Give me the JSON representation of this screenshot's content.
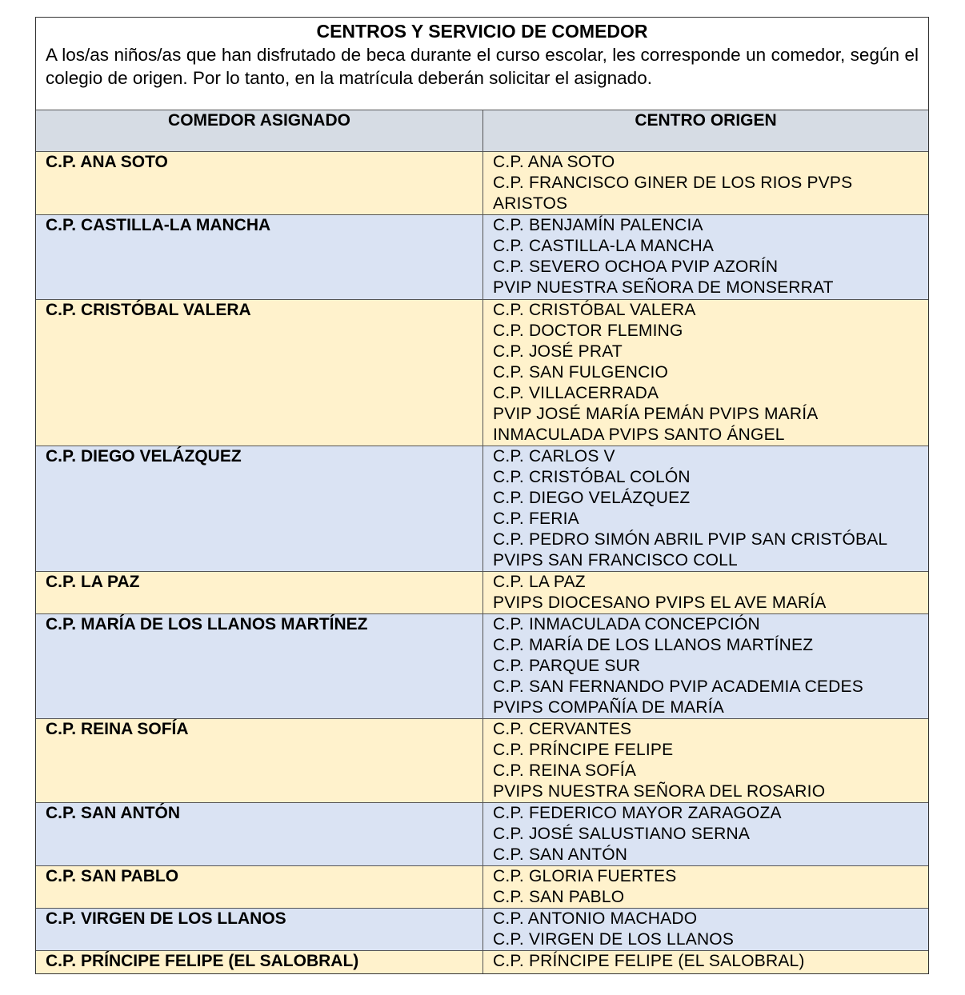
{
  "title": "CENTROS Y SERVICIO DE COMEDOR",
  "intro": "A los/as niños/as que han disfrutado de beca durante el curso escolar, les corresponde un comedor, según el colegio de origen. Por lo tanto, en la matrícula deberán solicitar el asignado.",
  "headers": {
    "assigned": "COMEDOR ASIGNADO",
    "origin": "CENTRO ORIGEN"
  },
  "colors": {
    "header": "#d6dce4",
    "yellow_row": "#fff2cc",
    "blue_row": "#dae3f3"
  },
  "rows": [
    {
      "assigned": "C.P. ANA SOTO",
      "origin": [
        "C.P. ANA SOTO",
        "C.P. FRANCISCO GINER DE LOS RIOS PVPS",
        "ARISTOS"
      ]
    },
    {
      "assigned": "C.P. CASTILLA-LA MANCHA",
      "origin": [
        "C.P. BENJAMÍN PALENCIA",
        "C.P. CASTILLA-LA MANCHA",
        "C.P. SEVERO OCHOA PVIP AZORÍN",
        "PVIP NUESTRA SEÑORA DE MONSERRAT"
      ]
    },
    {
      "assigned": "C.P. CRISTÓBAL VALERA",
      "origin": [
        "C.P. CRISTÓBAL VALERA",
        "C.P. DOCTOR FLEMING",
        "C.P. JOSÉ PRAT",
        "C.P. SAN FULGENCIO",
        "C.P. VILLACERRADA",
        "PVIP JOSÉ MARÍA PEMÁN PVIPS MARÍA",
        "INMACULADA PVIPS SANTO ÁNGEL"
      ]
    },
    {
      "assigned": "C.P. DIEGO VELÁZQUEZ",
      "origin": [
        "C.P. CARLOS V",
        "C.P. CRISTÓBAL COLÓN",
        "C.P. DIEGO VELÁZQUEZ",
        "C.P. FERIA",
        "C.P. PEDRO SIMÓN ABRIL PVIP SAN CRISTÓBAL",
        "PVIPS SAN FRANCISCO COLL"
      ]
    },
    {
      "assigned": "C.P. LA PAZ",
      "origin": [
        "C.P. LA PAZ",
        "PVIPS DIOCESANO PVIPS EL AVE MARÍA"
      ]
    },
    {
      "assigned": "C.P. MARÍA DE LOS LLANOS MARTÍNEZ",
      "origin": [
        "C.P. INMACULADA CONCEPCIÓN",
        "C.P. MARÍA DE LOS LLANOS MARTÍNEZ",
        "C.P. PARQUE SUR",
        "C.P. SAN FERNANDO PVIP ACADEMIA CEDES",
        "PVIPS COMPAÑÍA DE MARÍA"
      ]
    },
    {
      "assigned": "C.P. REINA SOFÍA",
      "origin": [
        "C.P. CERVANTES",
        "C.P. PRÍNCIPE FELIPE",
        "C.P. REINA SOFÍA",
        "PVIPS NUESTRA SEÑORA DEL ROSARIO"
      ]
    },
    {
      "assigned": "C.P. SAN ANTÓN",
      "origin": [
        "C.P. FEDERICO MAYOR ZARAGOZA",
        "C.P. JOSÉ SALUSTIANO SERNA",
        "C.P. SAN ANTÓN"
      ]
    },
    {
      "assigned": "C.P. SAN PABLO",
      "origin": [
        "C.P. GLORIA FUERTES",
        "C.P. SAN PABLO"
      ]
    },
    {
      "assigned": "C.P. VIRGEN DE LOS LLANOS",
      "origin": [
        "C.P. ANTONIO MACHADO",
        "C.P. VIRGEN DE LOS LLANOS"
      ]
    },
    {
      "assigned": "C.P. PRÍNCIPE FELIPE (EL SALOBRAL)",
      "origin": [
        "C.P. PRÍNCIPE FELIPE (EL SALOBRAL)"
      ]
    }
  ]
}
